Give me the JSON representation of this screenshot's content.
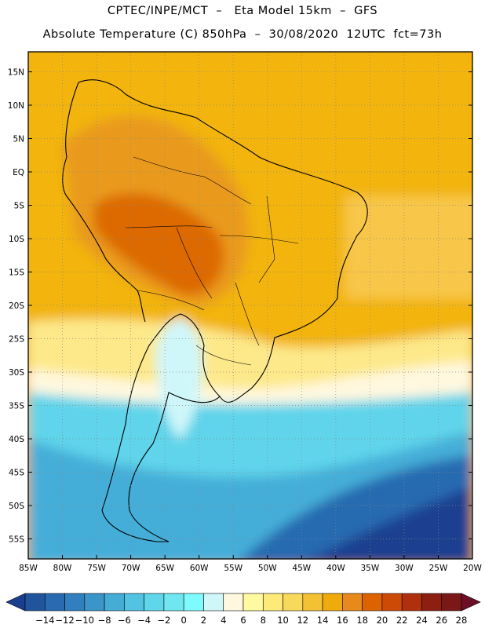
{
  "header": {
    "line1": "CPTEC/INPE/MCT  –   Eta Model 15km  –  GFS",
    "line2": "Absolute Temperature (C) 850hPa  –  30/08/2020  12UTC  fct=73h"
  },
  "map": {
    "lat_labels": [
      "15N",
      "10N",
      "5N",
      "EQ",
      "5S",
      "10S",
      "15S",
      "20S",
      "25S",
      "30S",
      "35S",
      "40S",
      "45S",
      "50S",
      "55S"
    ],
    "lon_labels": [
      "85W",
      "80W",
      "75W",
      "70W",
      "65W",
      "60W",
      "55W",
      "50W",
      "45W",
      "40W",
      "35W",
      "30W",
      "25W",
      "20W"
    ],
    "lat_range": [
      18,
      -58
    ],
    "lon_range": [
      -85,
      -20
    ]
  },
  "colorbar": {
    "labels": [
      "-14",
      "-12",
      "-10",
      "-8",
      "-6",
      "-4",
      "-2",
      "0",
      "2",
      "4",
      "6",
      "8",
      "10",
      "12",
      "14",
      "16",
      "18",
      "20",
      "22",
      "24",
      "26",
      "28"
    ],
    "colors": [
      "#1a3f8f",
      "#20559e",
      "#286bb0",
      "#317fbe",
      "#3a96c9",
      "#45acd6",
      "#52c3e2",
      "#5fd6ea",
      "#6fe6f0",
      "#80fbfd",
      "#cff7fa",
      "#fff8de",
      "#fff9a0",
      "#fdea78",
      "#f9d95c",
      "#f3c234",
      "#efab0c",
      "#e8891c",
      "#dd6200",
      "#cc4a05",
      "#b0300d",
      "#8d1f10",
      "#7a1818",
      "#6e0e26"
    ]
  }
}
